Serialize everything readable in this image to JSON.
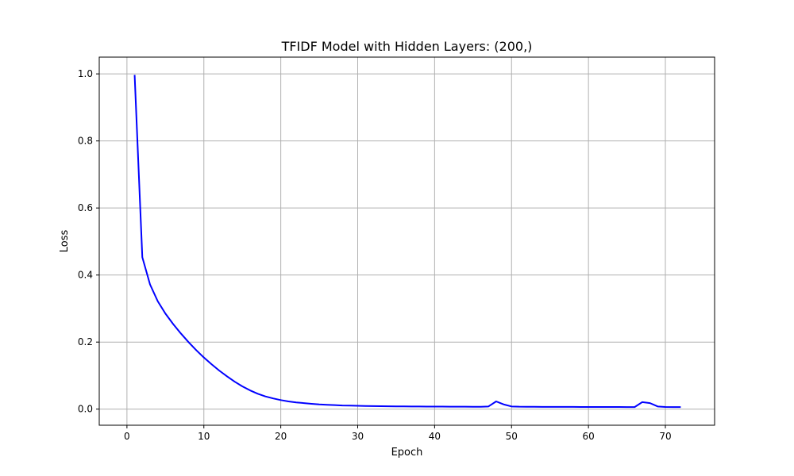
{
  "chart_data": {
    "type": "line",
    "title": "TFIDF Model with Hidden Layers: (200,)",
    "xlabel": "Epoch",
    "ylabel": "Loss",
    "xlim": [
      -3.6,
      76.4
    ],
    "ylim": [
      -0.048,
      1.05
    ],
    "xticks": [
      0,
      10,
      20,
      30,
      40,
      50,
      60,
      70
    ],
    "yticks": [
      0.0,
      0.2,
      0.4,
      0.6,
      0.8,
      1.0
    ],
    "grid": true,
    "series": [
      {
        "color": "#0000ff",
        "x": [
          1,
          2,
          3,
          4,
          5,
          6,
          7,
          8,
          9,
          10,
          11,
          12,
          13,
          14,
          15,
          16,
          17,
          18,
          19,
          20,
          21,
          22,
          23,
          24,
          25,
          26,
          27,
          28,
          29,
          30,
          31,
          32,
          33,
          34,
          35,
          36,
          37,
          38,
          39,
          40,
          41,
          42,
          43,
          44,
          45,
          46,
          47,
          48,
          49,
          50,
          51,
          52,
          53,
          54,
          55,
          56,
          57,
          58,
          59,
          60,
          61,
          62,
          63,
          64,
          65,
          66,
          67,
          68,
          69,
          70,
          71,
          72
        ],
        "y": [
          0.997,
          0.453,
          0.372,
          0.322,
          0.285,
          0.254,
          0.226,
          0.2,
          0.176,
          0.154,
          0.134,
          0.115,
          0.098,
          0.082,
          0.068,
          0.056,
          0.046,
          0.038,
          0.032,
          0.027,
          0.023,
          0.02,
          0.018,
          0.016,
          0.014,
          0.013,
          0.012,
          0.011,
          0.0105,
          0.01,
          0.0095,
          0.009,
          0.0088,
          0.0085,
          0.0083,
          0.0081,
          0.008,
          0.0078,
          0.0077,
          0.0076,
          0.0075,
          0.0074,
          0.0073,
          0.0072,
          0.0071,
          0.007,
          0.008,
          0.023,
          0.014,
          0.008,
          0.0072,
          0.007,
          0.0069,
          0.0068,
          0.0068,
          0.0067,
          0.0066,
          0.0066,
          0.0065,
          0.0065,
          0.0064,
          0.0064,
          0.0063,
          0.0063,
          0.0062,
          0.0062,
          0.021,
          0.018,
          0.008,
          0.0065,
          0.0062,
          0.006
        ]
      }
    ]
  }
}
